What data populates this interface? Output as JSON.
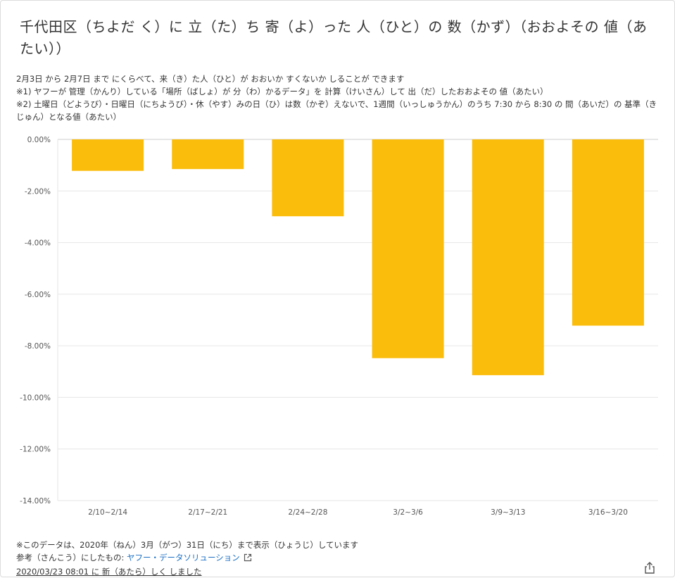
{
  "title": "千代田区（ちよだ く）に 立（た）ち 寄（よ）った 人（ひと）の 数（かず）（おおよその 値（あたい））",
  "description": {
    "line1": "2月3日 から 2月7日 まで にくらべて、来（き）た人（ひと）が おおいか すくないか しることが できます",
    "note1": "※1) ヤフーが 管理（かんり）している「場所（ばしょ）が 分（わ）かるデータ」を 計算（けいさん）して 出（だ）したおおよその 値（あたい）",
    "note2": "※2) 土曜日（どようび）・日曜日（にちようび）・休（やす）みの日（ひ）は数（かぞ）えないで、1週間（いっしゅうかん）のうち 7:30 から 8:30 の 間（あいだ）の 基準（きじゅん）となる値（あたい）"
  },
  "chart_data": {
    "type": "bar",
    "categories": [
      "2/10~2/14",
      "2/17~2/21",
      "2/24~2/28",
      "3/2~3/6",
      "3/9~3/13",
      "3/16~3/20"
    ],
    "values": [
      -1.22,
      -1.15,
      -2.98,
      -8.48,
      -9.14,
      -7.22
    ],
    "ylim": [
      -14,
      0
    ],
    "yticks": [
      0,
      -2,
      -4,
      -6,
      -8,
      -10,
      -12,
      -14
    ],
    "ytick_labels": [
      "0.00%",
      "-2.00%",
      "-4.00%",
      "-6.00%",
      "-8.00%",
      "-10.00%",
      "-12.00%",
      "-14.00%"
    ],
    "grid": true,
    "bar_color": "#fbbd0c"
  },
  "footer": {
    "note": "※このデータは、2020年（ねん）3月（がつ）31日（にち）まで表示（ひょうじ）しています",
    "reference_prefix": "参考（さんこう）にしたもの: ",
    "reference_link": "ヤフー・データソリューション",
    "updated": "2020/03/23 08:01 に 新（あたら）しく しました"
  },
  "icons": {
    "external_link": "external-link-icon",
    "share": "share-icon"
  },
  "colors": {
    "link": "#1a6fc4",
    "bar": "#fbbd0c"
  }
}
